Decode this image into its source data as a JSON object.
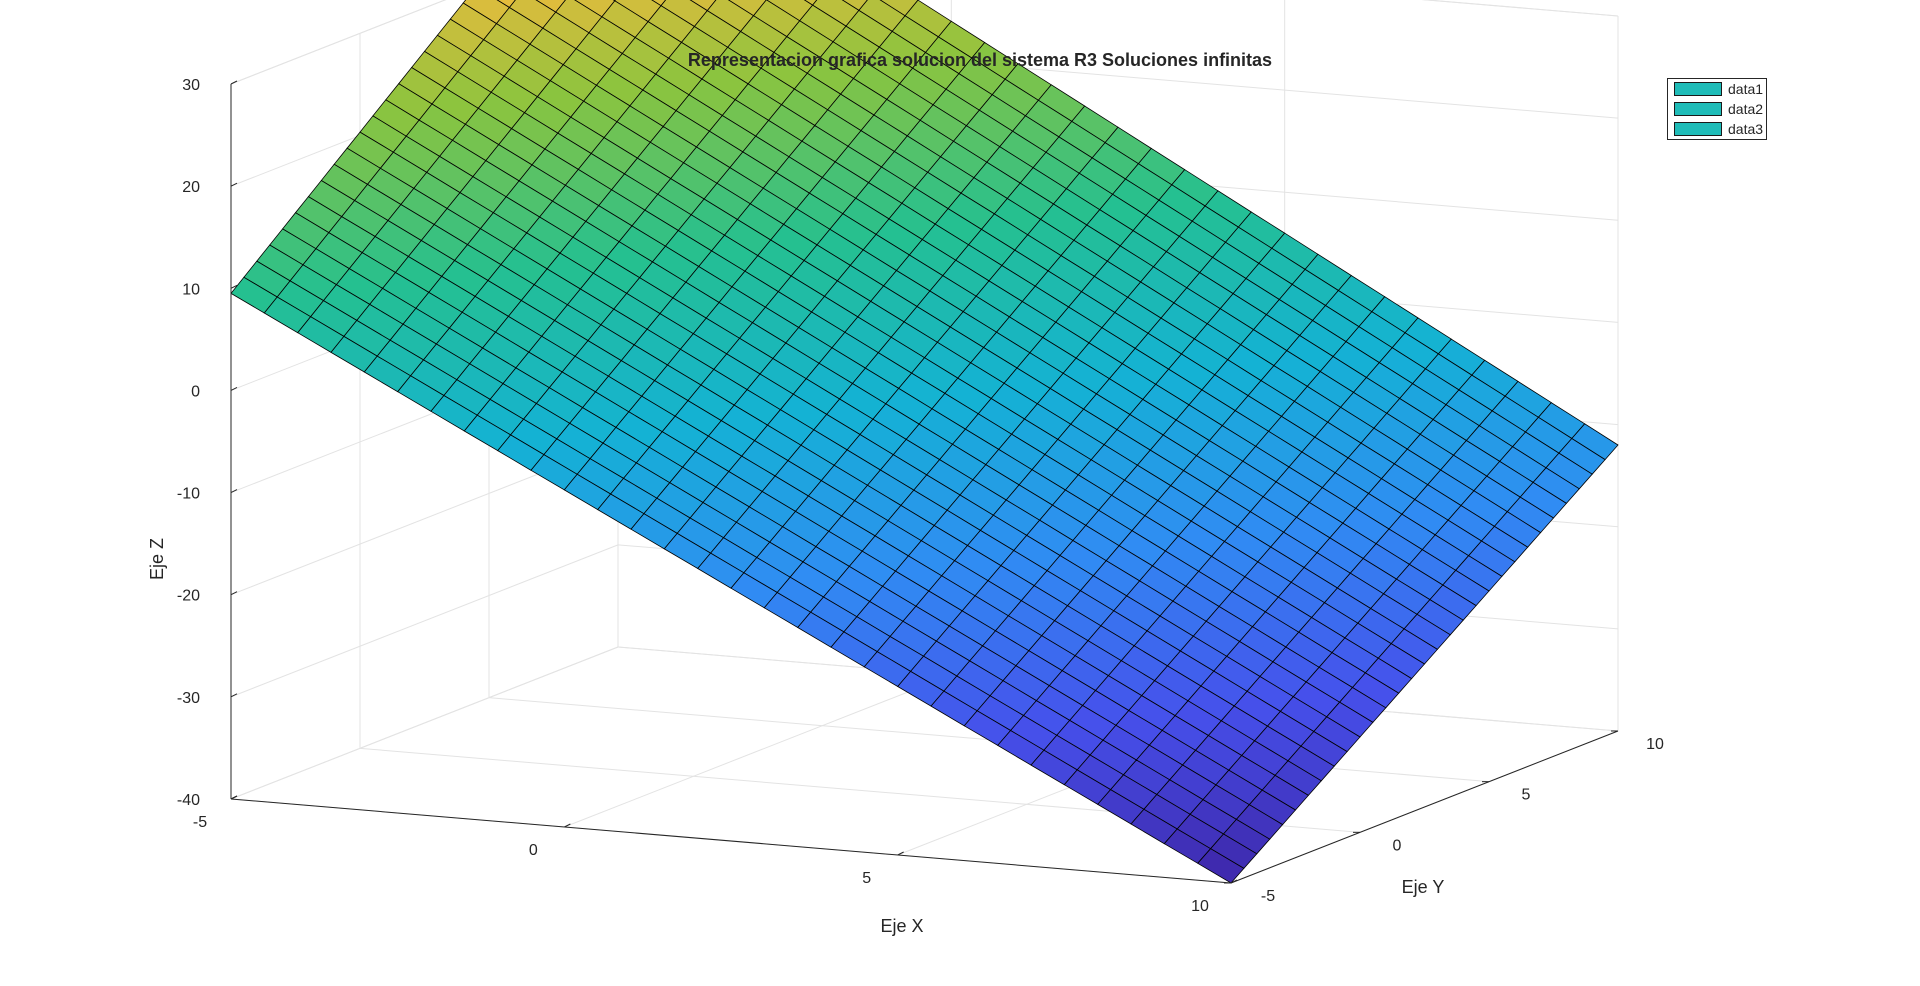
{
  "chart_data": {
    "type": "surface",
    "title": "Representacion grafica solucion del sistema R3 Soluciones infinitas",
    "xlabel": "Eje X",
    "ylabel": "Eje Y",
    "zlabel": "Eje Z",
    "xlim": [
      -5,
      10
    ],
    "ylim": [
      -5,
      10
    ],
    "zlim": [
      -40,
      30
    ],
    "x_ticks": [
      "-5",
      "0",
      "5",
      "10"
    ],
    "y_ticks": [
      "-5",
      "0",
      "5",
      "10"
    ],
    "z_ticks": [
      "-40",
      "-30",
      "-20",
      "-10",
      "0",
      "10",
      "20",
      "30"
    ],
    "grid": true,
    "colormap": "parula",
    "legend_position": "top-right",
    "legend": [
      "data1",
      "data2",
      "data3"
    ],
    "legend_color": "#1fbcb8",
    "mesh_divisions": 30,
    "surface_corners": [
      {
        "x": -5,
        "y": -5,
        "z": 9.5
      },
      {
        "x": 10,
        "y": -5,
        "z": -40
      },
      {
        "x": 10,
        "y": 10,
        "z": -12
      },
      {
        "x": -5,
        "y": 10,
        "z": 42
      }
    ]
  }
}
